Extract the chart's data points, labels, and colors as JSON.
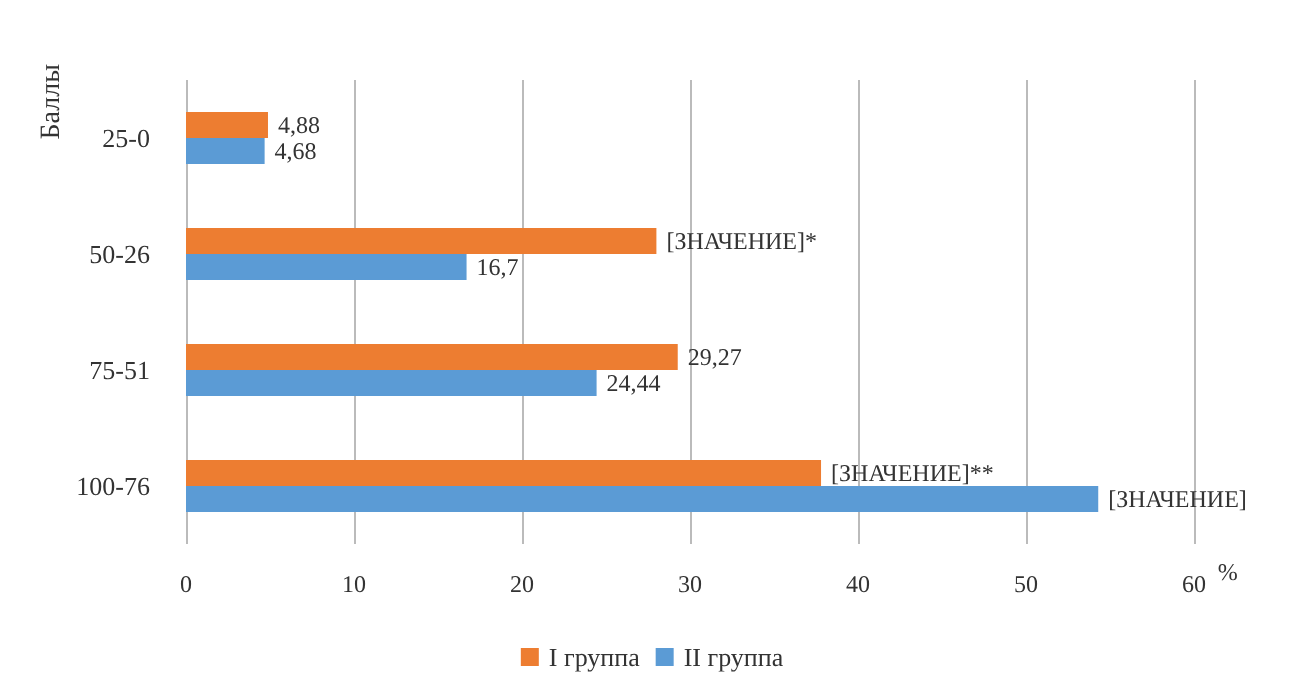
{
  "chart_data": {
    "type": "bar",
    "orientation": "horizontal",
    "xlabel": "%",
    "ylabel": "Баллы",
    "categories": [
      "25-0",
      "50-26",
      "75-51",
      "100-76"
    ],
    "series": [
      {
        "name": "I группа",
        "color": "#ed7d31",
        "values": [
          4.88,
          28,
          29.27,
          37.8
        ],
        "value_labels": [
          "4,88",
          "[ЗНАЧЕНИЕ]*",
          "29,27",
          "[ЗНАЧЕНИЕ]**"
        ]
      },
      {
        "name": "II группа",
        "color": "#5b9bd5",
        "values": [
          4.68,
          16.7,
          24.44,
          54.3
        ],
        "value_labels": [
          "4,68",
          "16,7",
          "24,44",
          "[ЗНАЧЕНИЕ]"
        ]
      }
    ],
    "xlim": [
      0,
      60
    ],
    "xticks": [
      0,
      10,
      20,
      30,
      40,
      50,
      60
    ],
    "grid": "x",
    "legend": "bottom"
  }
}
